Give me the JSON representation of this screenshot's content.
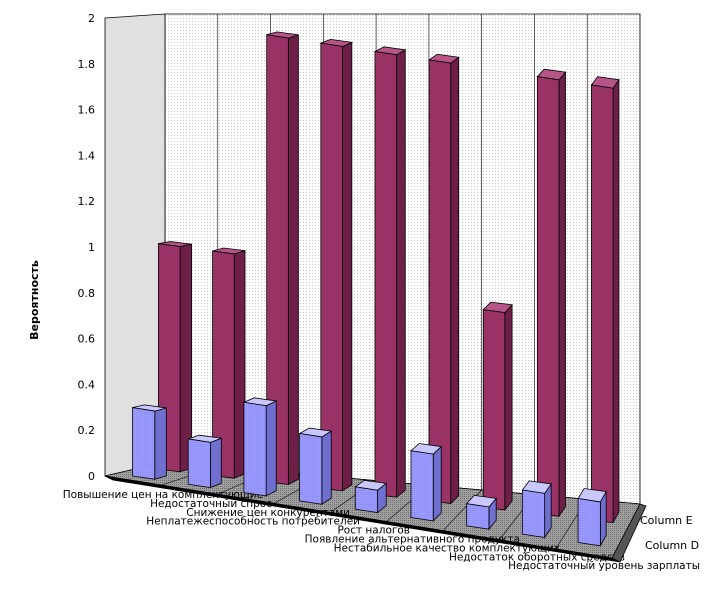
{
  "chart_data": {
    "type": "bar",
    "subtype": "3d-clustered-column",
    "title": "",
    "xlabel": "",
    "ylabel": "Вероятность",
    "ylim": [
      0,
      2
    ],
    "yticks": [
      "0",
      "0.2",
      "0.4",
      "0.6",
      "0.8",
      "1",
      "1.2",
      "1.4",
      "1.6",
      "1.8",
      "2"
    ],
    "grid": true,
    "legend_position": "right",
    "categories": [
      "Повышение цен на комплектующие",
      "Недостаточный спрос",
      "Снижение цен конкурентами",
      "Неплатежеспособность потребителей",
      "Рост налогов",
      "Появление альтернативного продукта",
      "Нестабильное качество комплектующих",
      "Недостаток оборотных средств",
      "Недостаточный уровень зарплаты"
    ],
    "series": [
      {
        "name": "Column D",
        "color": "#9999ff",
        "values": [
          0.3,
          0.2,
          0.4,
          0.3,
          0.1,
          0.3,
          0.1,
          0.2,
          0.2
        ]
      },
      {
        "name": "Column E",
        "color": "#993366",
        "values": [
          1,
          1,
          2,
          2,
          2,
          2,
          0.9,
          2,
          2
        ]
      }
    ]
  }
}
